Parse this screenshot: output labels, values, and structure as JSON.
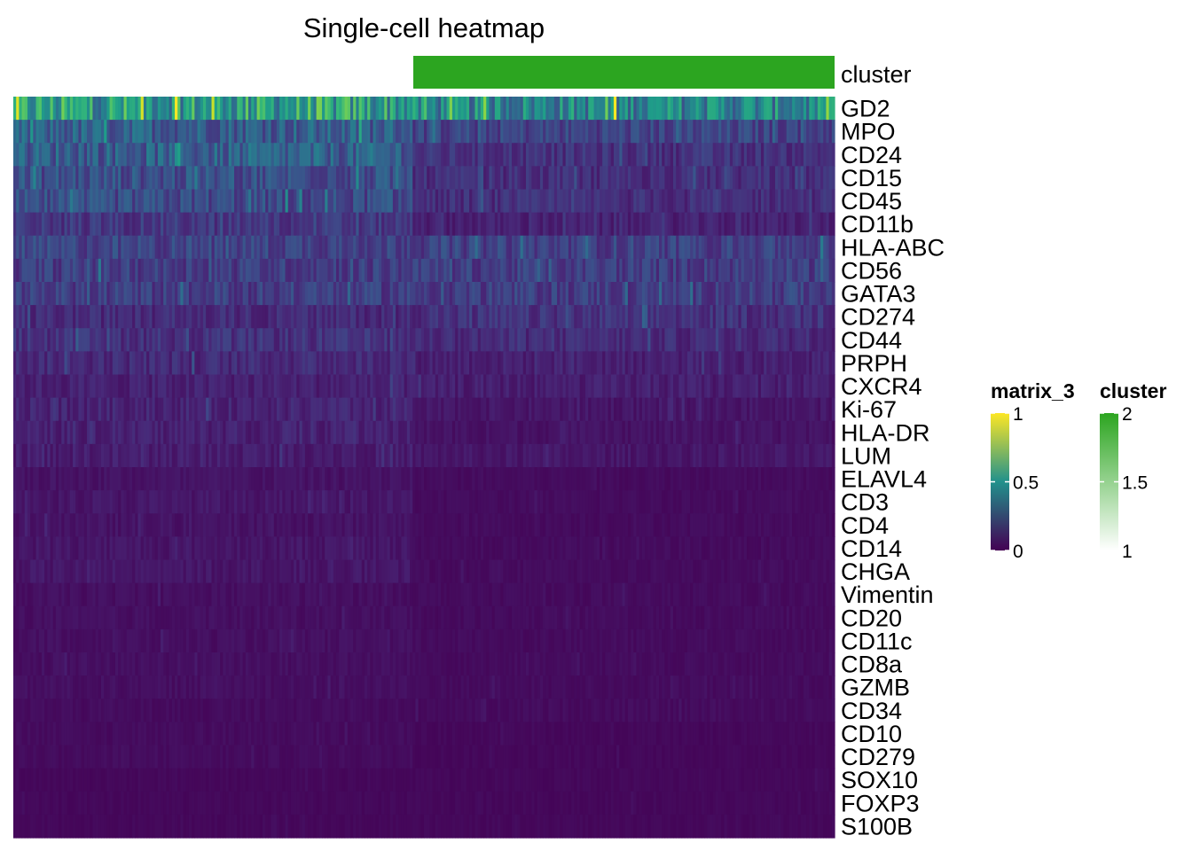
{
  "chart_data": {
    "type": "heatmap",
    "title": "Single-cell heatmap",
    "annotation": {
      "name": "cluster",
      "value": 2,
      "color": "#2ca520"
    },
    "rows": [
      {
        "label": "GD2",
        "levels": [
          0.55,
          0.45
        ]
      },
      {
        "label": "MPO",
        "levels": [
          0.3,
          0.2
        ]
      },
      {
        "label": "CD24",
        "levels": [
          0.3,
          0.14
        ]
      },
      {
        "label": "CD15",
        "levels": [
          0.24,
          0.13
        ]
      },
      {
        "label": "CD45",
        "levels": [
          0.22,
          0.13
        ]
      },
      {
        "label": "CD11b",
        "levels": [
          0.16,
          0.09
        ]
      },
      {
        "label": "HLA-ABC",
        "levels": [
          0.2,
          0.19
        ]
      },
      {
        "label": "CD56",
        "levels": [
          0.18,
          0.18
        ]
      },
      {
        "label": "GATA3",
        "levels": [
          0.18,
          0.18
        ]
      },
      {
        "label": "CD274",
        "levels": [
          0.12,
          0.14
        ]
      },
      {
        "label": "CD44",
        "levels": [
          0.14,
          0.12
        ]
      },
      {
        "label": "PRPH",
        "levels": [
          0.12,
          0.09
        ]
      },
      {
        "label": "CXCR4",
        "levels": [
          0.09,
          0.08
        ]
      },
      {
        "label": "Ki-67",
        "levels": [
          0.1,
          0.06
        ]
      },
      {
        "label": "HLA-DR",
        "levels": [
          0.09,
          0.05
        ]
      },
      {
        "label": "LUM",
        "levels": [
          0.08,
          0.06
        ]
      },
      {
        "label": "ELAVL4",
        "levels": [
          0.05,
          0.03
        ]
      },
      {
        "label": "CD3",
        "levels": [
          0.06,
          0.03
        ]
      },
      {
        "label": "CD4",
        "levels": [
          0.05,
          0.03
        ]
      },
      {
        "label": "CD14",
        "levels": [
          0.06,
          0.03
        ]
      },
      {
        "label": "CHGA",
        "levels": [
          0.06,
          0.03
        ]
      },
      {
        "label": "Vimentin",
        "levels": [
          0.04,
          0.03
        ]
      },
      {
        "label": "CD20",
        "levels": [
          0.04,
          0.03
        ]
      },
      {
        "label": "CD11c",
        "levels": [
          0.04,
          0.03
        ]
      },
      {
        "label": "CD8a",
        "levels": [
          0.04,
          0.03
        ]
      },
      {
        "label": "GZMB",
        "levels": [
          0.04,
          0.03
        ]
      },
      {
        "label": "CD34",
        "levels": [
          0.03,
          0.03
        ]
      },
      {
        "label": "CD10",
        "levels": [
          0.03,
          0.02
        ]
      },
      {
        "label": "CD279",
        "levels": [
          0.03,
          0.02
        ]
      },
      {
        "label": "SOX10",
        "levels": [
          0.02,
          0.02
        ]
      },
      {
        "label": "FOXP3",
        "levels": [
          0.02,
          0.02
        ]
      },
      {
        "label": "S100B",
        "levels": [
          0.02,
          0.02
        ]
      }
    ],
    "legends": [
      {
        "title": "matrix_3",
        "ticks": [
          "1",
          "0.5",
          "0"
        ],
        "range": [
          0,
          1
        ],
        "colors": [
          "#440154",
          "#21918c",
          "#fde725"
        ]
      },
      {
        "title": "cluster",
        "ticks": [
          "2",
          "1.5",
          "1"
        ],
        "range": [
          1,
          2
        ],
        "colors": [
          "#ffffff",
          "#2ca520"
        ]
      }
    ]
  }
}
